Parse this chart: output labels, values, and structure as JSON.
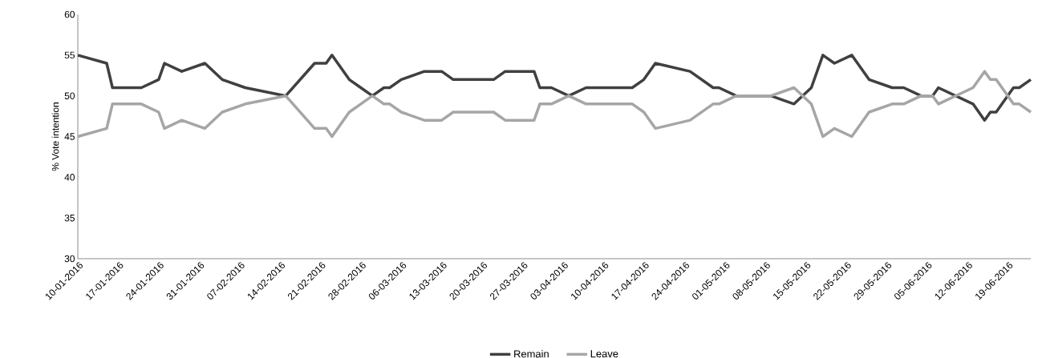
{
  "chart_data": {
    "type": "line",
    "ylabel": "% Vote intention",
    "x": [
      "2016-01-10",
      "2016-01-15",
      "2016-01-16",
      "2016-01-21",
      "2016-01-24",
      "2016-01-25",
      "2016-01-28",
      "2016-02-01",
      "2016-02-04",
      "2016-02-08",
      "2016-02-15",
      "2016-02-20",
      "2016-02-22",
      "2016-02-23",
      "2016-02-26",
      "2016-02-28",
      "2016-03-01",
      "2016-03-03",
      "2016-03-04",
      "2016-03-06",
      "2016-03-10",
      "2016-03-13",
      "2016-03-15",
      "2016-03-22",
      "2016-03-24",
      "2016-03-29",
      "2016-03-30",
      "2016-04-01",
      "2016-04-04",
      "2016-04-07",
      "2016-04-15",
      "2016-04-17",
      "2016-04-19",
      "2016-04-25",
      "2016-04-29",
      "2016-04-30",
      "2016-05-03",
      "2016-05-09",
      "2016-05-13",
      "2016-05-16",
      "2016-05-18",
      "2016-05-20",
      "2016-05-23",
      "2016-05-26",
      "2016-05-30",
      "2016-06-01",
      "2016-06-04",
      "2016-06-06",
      "2016-06-07",
      "2016-06-10",
      "2016-06-13",
      "2016-06-15",
      "2016-06-16",
      "2016-06-17",
      "2016-06-20",
      "2016-06-21",
      "2016-06-23"
    ],
    "series": [
      {
        "name": "Remain",
        "color": "#404040",
        "values": [
          55,
          54,
          51,
          51,
          52,
          54,
          53,
          54,
          52,
          51,
          50,
          54,
          54,
          55,
          52,
          51,
          50,
          51,
          51,
          52,
          53,
          53,
          52,
          52,
          53,
          53,
          51,
          51,
          50,
          51,
          51,
          52,
          54,
          53,
          51,
          51,
          50,
          50,
          49,
          51,
          55,
          54,
          55,
          52,
          51,
          51,
          50,
          50,
          51,
          50,
          49,
          47,
          48,
          48,
          51,
          51,
          52
        ]
      },
      {
        "name": "Leave",
        "color": "#a6a6a6",
        "values": [
          45,
          46,
          49,
          49,
          48,
          46,
          47,
          46,
          48,
          49,
          50,
          46,
          46,
          45,
          48,
          49,
          50,
          49,
          49,
          48,
          47,
          47,
          48,
          48,
          47,
          47,
          49,
          49,
          50,
          49,
          49,
          48,
          46,
          47,
          49,
          49,
          50,
          50,
          51,
          49,
          45,
          46,
          45,
          48,
          49,
          49,
          50,
          50,
          49,
          50,
          51,
          53,
          52,
          52,
          49,
          49,
          48
        ]
      }
    ],
    "xlim": [
      "2016-01-10",
      "2016-06-23"
    ],
    "xticks": [
      {
        "value": "2016-01-10",
        "label": "10-01-2016"
      },
      {
        "value": "2016-01-17",
        "label": "17-01-2016"
      },
      {
        "value": "2016-01-24",
        "label": "24-01-2016"
      },
      {
        "value": "2016-01-31",
        "label": "31-01-2016"
      },
      {
        "value": "2016-02-07",
        "label": "07-02-2016"
      },
      {
        "value": "2016-02-14",
        "label": "14-02-2016"
      },
      {
        "value": "2016-02-21",
        "label": "21-02-2016"
      },
      {
        "value": "2016-02-28",
        "label": "28-02-2016"
      },
      {
        "value": "2016-03-06",
        "label": "06-03-2016"
      },
      {
        "value": "2016-03-13",
        "label": "13-03-2016"
      },
      {
        "value": "2016-03-20",
        "label": "20-03-2016"
      },
      {
        "value": "2016-03-27",
        "label": "27-03-2016"
      },
      {
        "value": "2016-04-03",
        "label": "03-04-2016"
      },
      {
        "value": "2016-04-10",
        "label": "10-04-2016"
      },
      {
        "value": "2016-04-17",
        "label": "17-04-2016"
      },
      {
        "value": "2016-04-24",
        "label": "24-04-2016"
      },
      {
        "value": "2016-05-01",
        "label": "01-05-2016"
      },
      {
        "value": "2016-05-08",
        "label": "08-05-2016"
      },
      {
        "value": "2016-05-15",
        "label": "15-05-2016"
      },
      {
        "value": "2016-05-22",
        "label": "22-05-2016"
      },
      {
        "value": "2016-05-29",
        "label": "29-05-2016"
      },
      {
        "value": "2016-06-05",
        "label": "05-06-2016"
      },
      {
        "value": "2016-06-12",
        "label": "12-06-2016"
      },
      {
        "value": "2016-06-19",
        "label": "19-06-2016"
      }
    ],
    "ylim": [
      30,
      60
    ],
    "yticks": [
      30,
      35,
      40,
      45,
      50,
      55,
      60
    ],
    "legend": "bottom",
    "grid": false,
    "marker": "none",
    "line_style": "solid"
  }
}
